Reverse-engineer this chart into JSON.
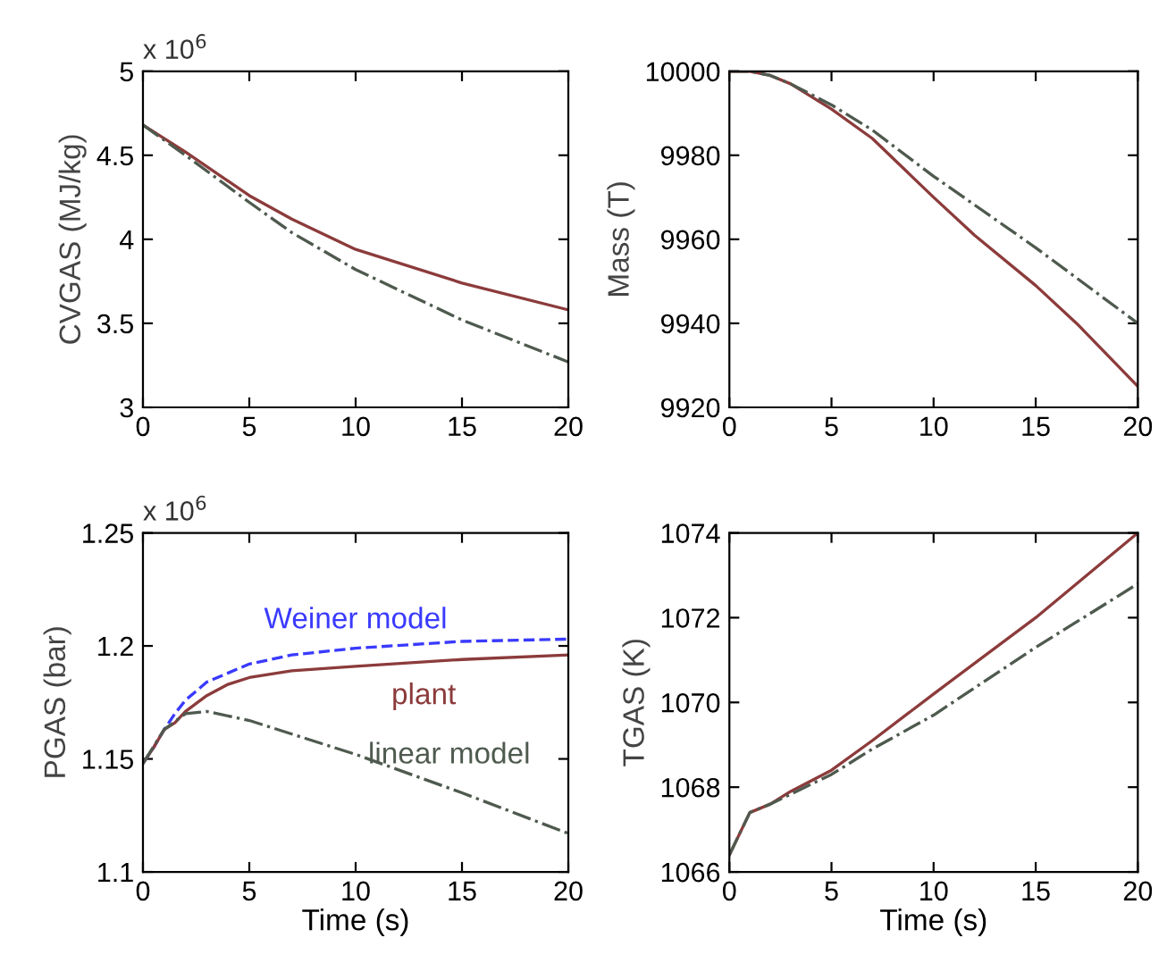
{
  "chart_data": [
    {
      "type": "line",
      "ylabel": "CVGAS (MJ/kg)",
      "annotations": [
        "x 10$^{6}$"
      ],
      "xlim": [
        0,
        20
      ],
      "xticks": [
        0,
        5,
        10,
        15,
        20
      ],
      "ylim": [
        3,
        5
      ],
      "yticks": [
        3,
        3.5,
        4,
        4.5,
        5
      ],
      "grid": false,
      "legend": false,
      "series": [
        {
          "color": "#8c3b3b",
          "line_style": "solid",
          "x": [
            0,
            2,
            5,
            7,
            10,
            15,
            20
          ],
          "values": [
            4.68,
            4.52,
            4.26,
            4.12,
            3.94,
            3.74,
            3.58
          ]
        },
        {
          "color": "#4f5a4f",
          "line_style": "dashdot",
          "x": [
            0,
            2,
            5,
            7,
            10,
            15,
            20
          ],
          "values": [
            4.68,
            4.5,
            4.22,
            4.04,
            3.82,
            3.52,
            3.27
          ]
        }
      ]
    },
    {
      "type": "line",
      "ylabel": "Mass (T)",
      "xlim": [
        0,
        20
      ],
      "xticks": [
        0,
        5,
        10,
        15,
        20
      ],
      "ylim": [
        9920,
        10000
      ],
      "yticks": [
        9920,
        9940,
        9960,
        9980,
        10000
      ],
      "grid": false,
      "legend": false,
      "series": [
        {
          "color": "#8c3b3b",
          "line_style": "solid",
          "x": [
            0,
            1,
            2,
            3,
            5,
            7,
            10,
            12,
            15,
            17,
            20
          ],
          "values": [
            10000,
            10000,
            9999,
            9997,
            9991,
            9984,
            9970,
            9961,
            9949,
            9940,
            9925
          ]
        },
        {
          "color": "#4f5a4f",
          "line_style": "dashdot",
          "x": [
            0,
            1,
            2,
            3,
            5,
            7,
            10,
            15,
            20
          ],
          "values": [
            10000,
            10000,
            9999,
            9997,
            9992,
            9986,
            9975,
            9958,
            9940
          ]
        }
      ]
    },
    {
      "type": "line",
      "ylabel": "PGAS (bar)",
      "xlabel": "Time (s)",
      "annotations": [
        "x 10$^{6}$"
      ],
      "xlim": [
        0,
        20
      ],
      "xticks": [
        0,
        5,
        10,
        15,
        20
      ],
      "ylim": [
        1.1,
        1.25
      ],
      "yticks": [
        1.1,
        1.15,
        1.2,
        1.25
      ],
      "grid": false,
      "legend": false,
      "series": [
        {
          "name": "Weiner model",
          "color": "#3a3aff",
          "line_style": "dashed",
          "x": [
            0,
            0.5,
            1,
            1.5,
            2,
            3,
            5,
            7,
            10,
            15,
            20
          ],
          "values": [
            1.148,
            1.155,
            1.163,
            1.17,
            1.176,
            1.184,
            1.192,
            1.196,
            1.199,
            1.202,
            1.203
          ]
        },
        {
          "name": "plant",
          "color": "#8c3b3b",
          "line_style": "solid",
          "x": [
            0,
            0.5,
            1,
            1.5,
            2,
            3,
            4,
            5,
            7,
            10,
            15,
            20
          ],
          "values": [
            1.148,
            1.155,
            1.163,
            1.166,
            1.171,
            1.178,
            1.183,
            1.186,
            1.189,
            1.191,
            1.194,
            1.196
          ]
        },
        {
          "name": "linear model",
          "color": "#4f5a4f",
          "line_style": "dashdot",
          "x": [
            0,
            1,
            2,
            3,
            5,
            10,
            15,
            20
          ],
          "values": [
            1.148,
            1.163,
            1.17,
            1.171,
            1.167,
            1.152,
            1.135,
            1.117
          ]
        }
      ]
    },
    {
      "type": "line",
      "ylabel": "TGAS (K)",
      "xlabel": "Time (s)",
      "xlim": [
        0,
        20
      ],
      "xticks": [
        0,
        5,
        10,
        15,
        20
      ],
      "ylim": [
        1066,
        1074
      ],
      "yticks": [
        1066,
        1068,
        1070,
        1072,
        1074
      ],
      "grid": false,
      "legend": false,
      "series": [
        {
          "color": "#8c3b3b",
          "line_style": "solid",
          "x": [
            0,
            1,
            2,
            3,
            5,
            7,
            10,
            15,
            20
          ],
          "values": [
            1066.4,
            1067.4,
            1067.6,
            1067.9,
            1068.4,
            1069.1,
            1070.2,
            1072.0,
            1074.0
          ]
        },
        {
          "color": "#4f5a4f",
          "line_style": "dashdot",
          "x": [
            0,
            1,
            2,
            5,
            7,
            10,
            15,
            20
          ],
          "values": [
            1066.4,
            1067.4,
            1067.6,
            1068.3,
            1068.9,
            1069.7,
            1071.3,
            1072.8
          ]
        }
      ]
    }
  ]
}
